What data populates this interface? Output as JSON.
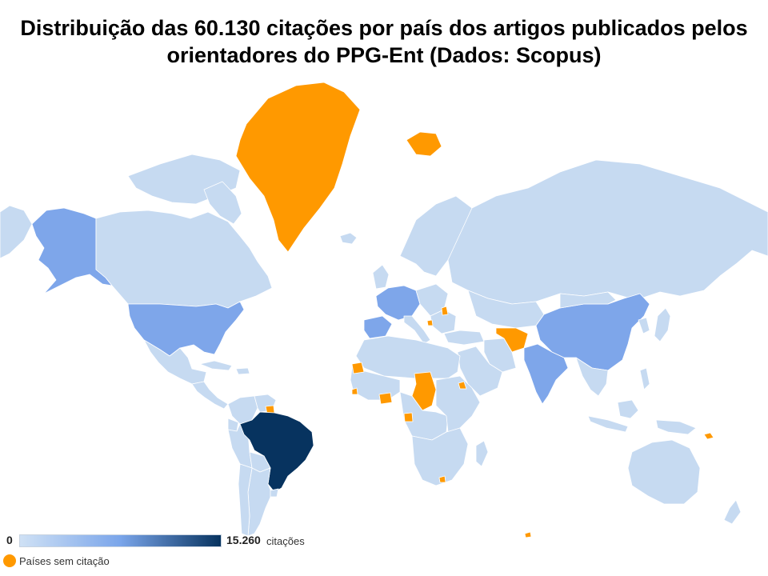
{
  "title": {
    "line1": "Distribuição das 60.130 citações por país dos artigos publicados pelos",
    "line2": "orientadores do PPG-Ent (Dados: Scopus)"
  },
  "legend": {
    "min": "0",
    "max": "15.260",
    "unit": "citações",
    "gradient": [
      "#cfe1f5",
      "#7aa5ea",
      "#07335f"
    ]
  },
  "no_citation": {
    "label": "Países sem citação",
    "color": "#ff9900"
  },
  "colors": {
    "low": "#c6daf1",
    "mid": "#7ea6ea",
    "high": "#07335f",
    "none": "#ff9900",
    "border": "#ffffff"
  },
  "map_data": {
    "highlighted": [
      {
        "country": "Brasil",
        "level": "high"
      },
      {
        "country": "Estados Unidos",
        "level": "mid"
      },
      {
        "country": "China",
        "level": "mid"
      },
      {
        "country": "Alasca (EUA)",
        "level": "mid"
      }
    ],
    "no_citation_examples": [
      "Groenlândia",
      "Svalbard",
      "Afeganistão",
      "Chade",
      "Guiana Francesa"
    ]
  }
}
